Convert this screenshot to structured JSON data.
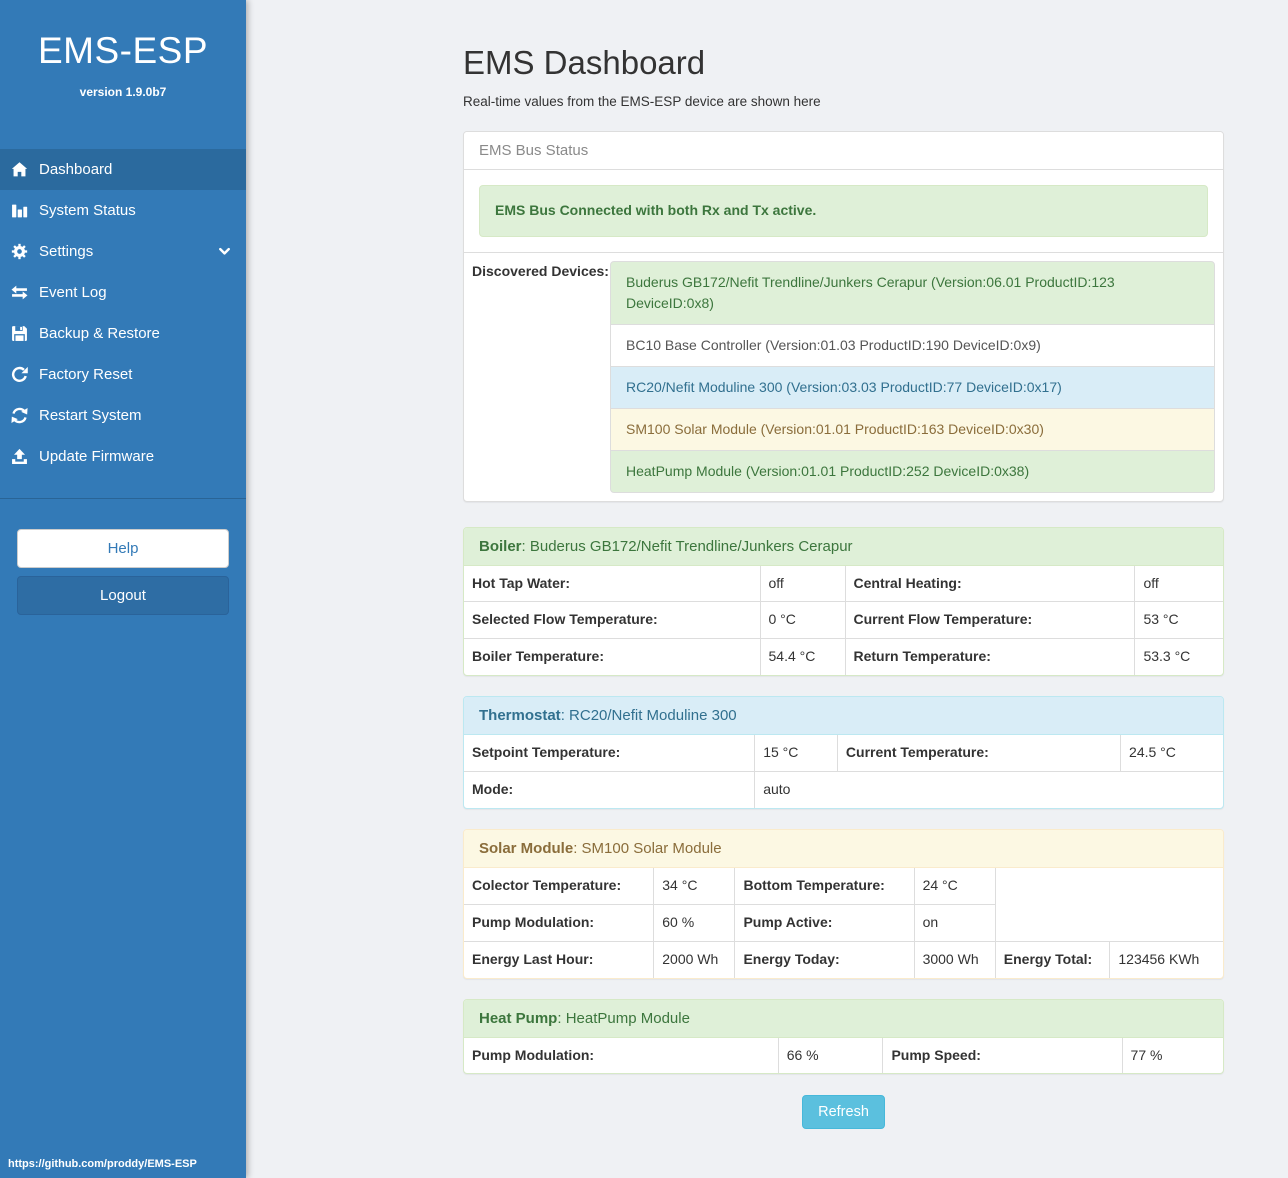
{
  "sidebar": {
    "brand": "EMS-ESP",
    "version": "version 1.9.0b7",
    "menu": [
      {
        "label": "Dashboard",
        "icon": "home-icon",
        "active": true
      },
      {
        "label": "System Status",
        "icon": "system-status-icon",
        "active": false
      },
      {
        "label": "Settings",
        "icon": "gear-icon",
        "active": false,
        "chevron": true
      },
      {
        "label": "Event Log",
        "icon": "exchange-icon",
        "active": false
      },
      {
        "label": "Backup & Restore",
        "icon": "save-icon",
        "active": false
      },
      {
        "label": "Factory Reset",
        "icon": "rotate-right-icon",
        "active": false
      },
      {
        "label": "Restart System",
        "icon": "refresh-icon",
        "active": false
      },
      {
        "label": "Update Firmware",
        "icon": "upload-icon",
        "active": false
      }
    ],
    "help_label": "Help",
    "logout_label": "Logout",
    "footer_link": "https://github.com/proddy/EMS-ESP"
  },
  "header": {
    "title": "EMS Dashboard",
    "subtitle": "Real-time values from the EMS-ESP device are shown here"
  },
  "bus_status": {
    "panel_title": "EMS Bus Status",
    "alert": "EMS Bus Connected with both Rx and Tx active.",
    "devices_label": "Discovered Devices:",
    "devices": [
      {
        "text": "Buderus GB172/Nefit Trendline/Junkers Cerapur (Version:06.01 ProductID:123 DeviceID:0x8)",
        "variant": "success"
      },
      {
        "text": "BC10 Base Controller (Version:01.03 ProductID:190 DeviceID:0x9)",
        "variant": "default"
      },
      {
        "text": "RC20/Nefit Moduline 300 (Version:03.03 ProductID:77 DeviceID:0x17)",
        "variant": "info"
      },
      {
        "text": "SM100 Solar Module (Version:01.01 ProductID:163 DeviceID:0x30)",
        "variant": "warning"
      },
      {
        "text": "HeatPump Module (Version:01.01 ProductID:252 DeviceID:0x38)",
        "variant": "success"
      }
    ]
  },
  "device_panels": [
    {
      "id": "boiler",
      "variant": "success",
      "name": "Boiler",
      "device": "Buderus GB172/Nefit Trendline/Junkers Cerapur",
      "cols": [
        "39%",
        "11.2%",
        "38.2%",
        "11.6%"
      ],
      "rows": [
        [
          {
            "label": "Hot Tap Water:"
          },
          {
            "value": "off"
          },
          {
            "label": "Central Heating:"
          },
          {
            "value": "off"
          }
        ],
        [
          {
            "label": "Selected Flow Temperature:"
          },
          {
            "value": "0 °C"
          },
          {
            "label": "Current Flow Temperature:"
          },
          {
            "value": "53 °C"
          }
        ],
        [
          {
            "label": "Boiler Temperature:"
          },
          {
            "value": "54.4 °C"
          },
          {
            "label": "Return Temperature:"
          },
          {
            "value": "53.3 °C"
          }
        ]
      ]
    },
    {
      "id": "thermostat",
      "variant": "info",
      "name": "Thermostat",
      "device": "RC20/Nefit Moduline 300",
      "cols": [
        "38.3%",
        "10.9%",
        "37.3%",
        "13.5%"
      ],
      "rows": [
        [
          {
            "label": "Setpoint Temperature:"
          },
          {
            "value": "15 °C"
          },
          {
            "label": "Current Temperature:"
          },
          {
            "value": "24.5 °C"
          }
        ],
        [
          {
            "label": "Mode:"
          },
          {
            "value": "auto",
            "colspan": 3
          }
        ]
      ]
    },
    {
      "id": "solar-module",
      "variant": "warning",
      "name": "Solar Module",
      "device": "SM100 Solar Module",
      "cols": [
        "25%",
        "10.7%",
        "23.6%",
        "10.7%",
        "15.1%",
        "14.9%"
      ],
      "rows": [
        [
          {
            "label": "Colector Temperature:"
          },
          {
            "value": "34 °C"
          },
          {
            "label": "Bottom Temperature:"
          },
          {
            "value": "24 °C"
          }
        ],
        [
          {
            "label": "Pump Modulation:"
          },
          {
            "value": "60 %"
          },
          {
            "label": "Pump Active:"
          },
          {
            "value": "on"
          }
        ],
        [
          {
            "label": "Energy Last Hour:"
          },
          {
            "value": "2000 Wh"
          },
          {
            "label": "Energy Today:"
          },
          {
            "value": "3000 Wh"
          },
          {
            "label": "Energy Total:"
          },
          {
            "value": "123456 KWh"
          }
        ]
      ]
    },
    {
      "id": "heat-pump",
      "variant": "success",
      "name": "Heat Pump",
      "device": "HeatPump Module",
      "cols": [
        "41.4%",
        "13.8%",
        "31.5%",
        "13.3%"
      ],
      "rows": [
        [
          {
            "label": "Pump Modulation:"
          },
          {
            "value": "66 %"
          },
          {
            "label": "Pump Speed:"
          },
          {
            "value": "77 %"
          }
        ]
      ]
    }
  ],
  "refresh": {
    "label": "Refresh"
  },
  "colors": {
    "sidebar": "#337ab7",
    "sidebar_active": "#2b6a9e",
    "success_bg": "#dff0d8",
    "success_text": "#3c763d",
    "info_bg": "#d9edf7",
    "info_text": "#31708f",
    "warning_bg": "#fcf8e3",
    "warning_text": "#8a6d3b",
    "refresh_button": "#5bc0de"
  }
}
